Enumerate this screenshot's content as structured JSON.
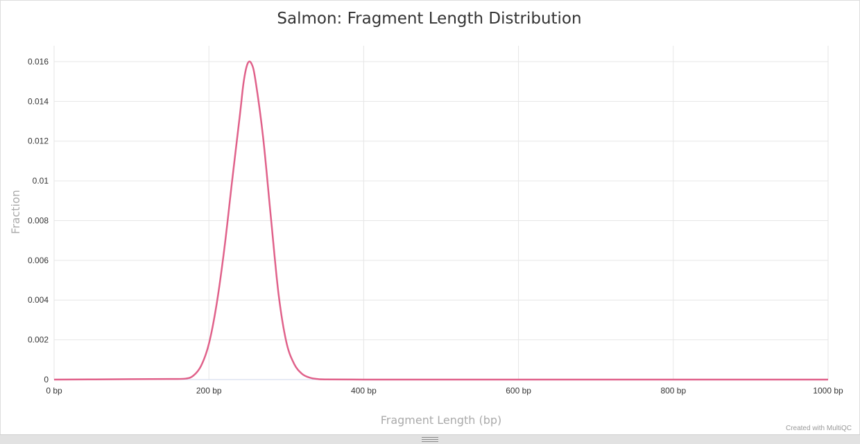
{
  "chart_data": {
    "type": "line",
    "title": "Salmon: Fragment Length Distribution",
    "xlabel": "Fragment Length (bp)",
    "ylabel": "Fraction",
    "xlim": [
      0,
      1000
    ],
    "ylim": [
      0,
      0.0168
    ],
    "x_ticks": [
      0,
      200,
      400,
      600,
      800,
      1000
    ],
    "x_tick_labels": [
      "0 bp",
      "200 bp",
      "400 bp",
      "600 bp",
      "800 bp",
      "1000 bp"
    ],
    "y_ticks": [
      0,
      0.002,
      0.004,
      0.006,
      0.008,
      0.01,
      0.012,
      0.014,
      0.016
    ],
    "y_tick_labels": [
      "0",
      "0.002",
      "0.004",
      "0.006",
      "0.008",
      "0.01",
      "0.012",
      "0.014",
      "0.016"
    ],
    "grid": true,
    "legend": "none",
    "series": [
      {
        "color": "#e0618a",
        "x": [
          0,
          100,
          150,
          170,
          180,
          190,
          200,
          210,
          220,
          230,
          240,
          245,
          250,
          255,
          260,
          270,
          280,
          290,
          300,
          310,
          320,
          330,
          340,
          350,
          400,
          500,
          600,
          700,
          800,
          900,
          1000
        ],
        "y": [
          0,
          2e-05,
          3e-05,
          5e-05,
          0.0002,
          0.0007,
          0.0018,
          0.0038,
          0.0066,
          0.01,
          0.0133,
          0.015,
          0.0159,
          0.0159,
          0.0151,
          0.0122,
          0.0082,
          0.0043,
          0.0019,
          0.0008,
          0.0003,
          0.0001,
          3e-05,
          1e-05,
          0,
          0,
          0,
          0,
          0,
          0,
          0
        ]
      }
    ]
  },
  "footer": {
    "credit": "Created with MultiQC"
  }
}
